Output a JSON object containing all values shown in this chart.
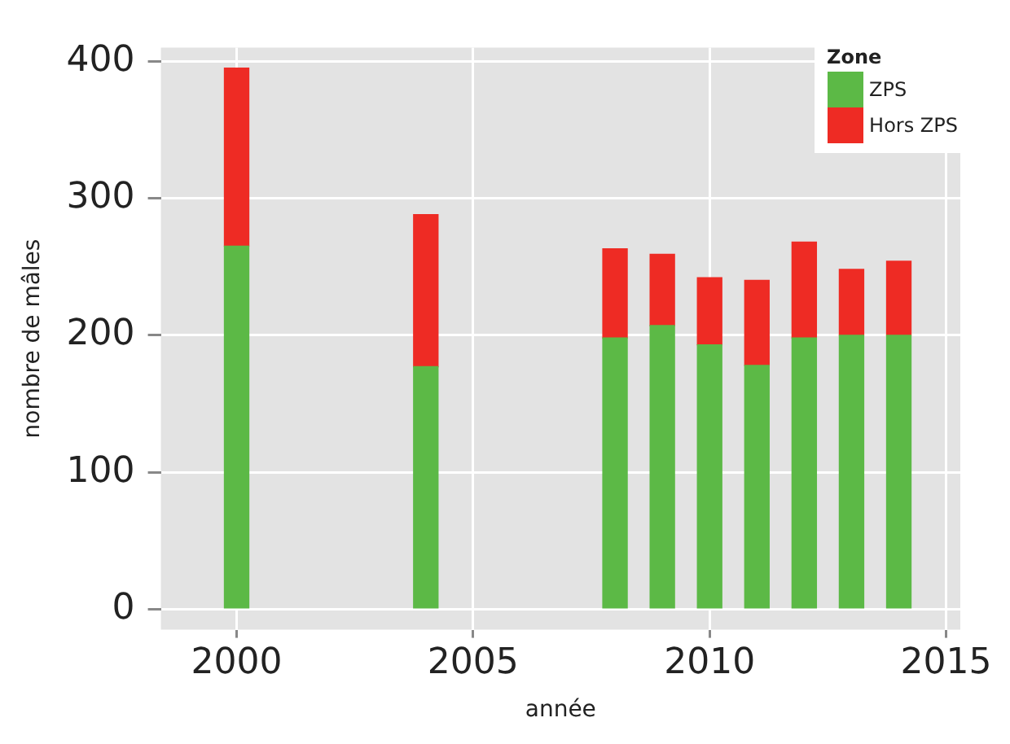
{
  "chart_data": {
    "type": "bar",
    "stacked": true,
    "xlabel": "année",
    "ylabel": "nombre de mâles",
    "legend_title": "Zone",
    "x": [
      2000,
      2004,
      2008,
      2009,
      2010,
      2011,
      2012,
      2013,
      2014
    ],
    "series": [
      {
        "name": "ZPS",
        "color": "#5cb946",
        "values": [
          265,
          177,
          198,
          207,
          193,
          178,
          198,
          200,
          200
        ]
      },
      {
        "name": "Hors ZPS",
        "color": "#ee2b24",
        "values": [
          130,
          111,
          65,
          52,
          49,
          62,
          70,
          48,
          54
        ]
      }
    ],
    "xlim": [
      1998.4,
      2015.3
    ],
    "xticks": [
      2000,
      2005,
      2010,
      2015
    ],
    "ylim": [
      -15,
      410
    ],
    "yticks": [
      0,
      100,
      200,
      300,
      400
    ],
    "grid": true,
    "legend": "top right"
  }
}
